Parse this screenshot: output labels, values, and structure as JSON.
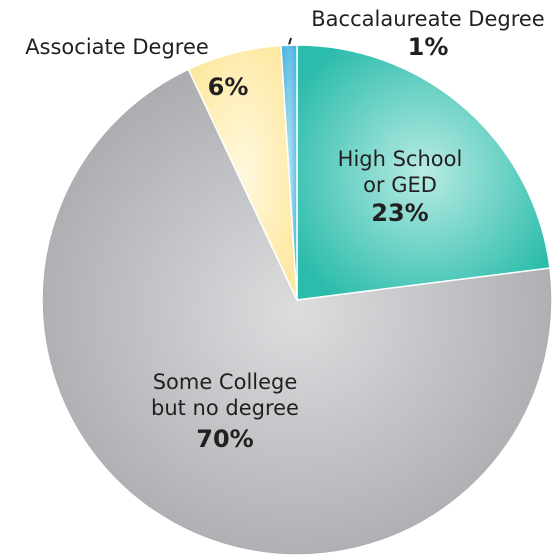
{
  "chart_data": {
    "type": "pie",
    "categories": [
      "High School\nor GED",
      "Some College\nbut no degree",
      "Associate Degree",
      "Baccalaureate Degree"
    ],
    "values": [
      23,
      70,
      6,
      1
    ],
    "value_labels": [
      "23%",
      "70%",
      "6%",
      "1%"
    ],
    "colors": [
      "#2bbcab",
      "#a5a7aa",
      "#fde8a0",
      "#4cb6e2"
    ]
  }
}
